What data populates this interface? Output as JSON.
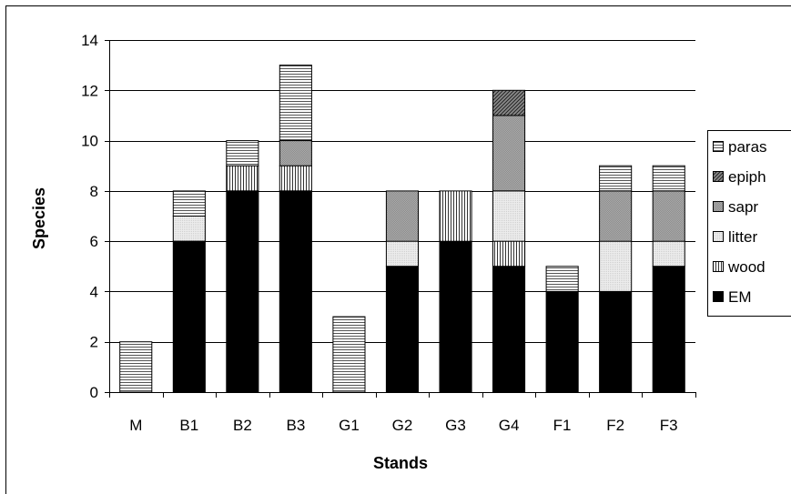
{
  "chart_data": {
    "type": "bar",
    "stacked": true,
    "categories": [
      "M",
      "B1",
      "B2",
      "B3",
      "G1",
      "G2",
      "G3",
      "G4",
      "F1",
      "F2",
      "F3"
    ],
    "series": [
      {
        "name": "EM",
        "values": [
          0,
          6,
          8,
          8,
          0,
          5,
          6,
          5,
          4,
          4,
          5
        ]
      },
      {
        "name": "wood",
        "values": [
          0,
          0,
          1,
          1,
          0,
          0,
          2,
          1,
          0,
          0,
          0
        ]
      },
      {
        "name": "litter",
        "values": [
          0,
          1,
          0,
          0,
          0,
          1,
          0,
          2,
          0,
          2,
          1
        ]
      },
      {
        "name": "sapr",
        "values": [
          0,
          0,
          0,
          1,
          0,
          2,
          0,
          3,
          0,
          2,
          2
        ]
      },
      {
        "name": "epiph",
        "values": [
          0,
          0,
          0,
          0,
          0,
          0,
          0,
          1,
          0,
          0,
          0
        ]
      },
      {
        "name": "paras",
        "values": [
          2,
          1,
          1,
          3,
          3,
          0,
          0,
          0,
          1,
          1,
          1
        ]
      }
    ],
    "legend_order": [
      "paras",
      "epiph",
      "sapr",
      "litter",
      "wood",
      "EM"
    ],
    "xlabel": "Stands",
    "ylabel": "Species",
    "ylim": [
      0,
      14
    ],
    "yticks": [
      "0",
      "2",
      "4",
      "6",
      "8",
      "10",
      "12",
      "14"
    ],
    "grid": "horizontal",
    "legend_position": "right"
  }
}
